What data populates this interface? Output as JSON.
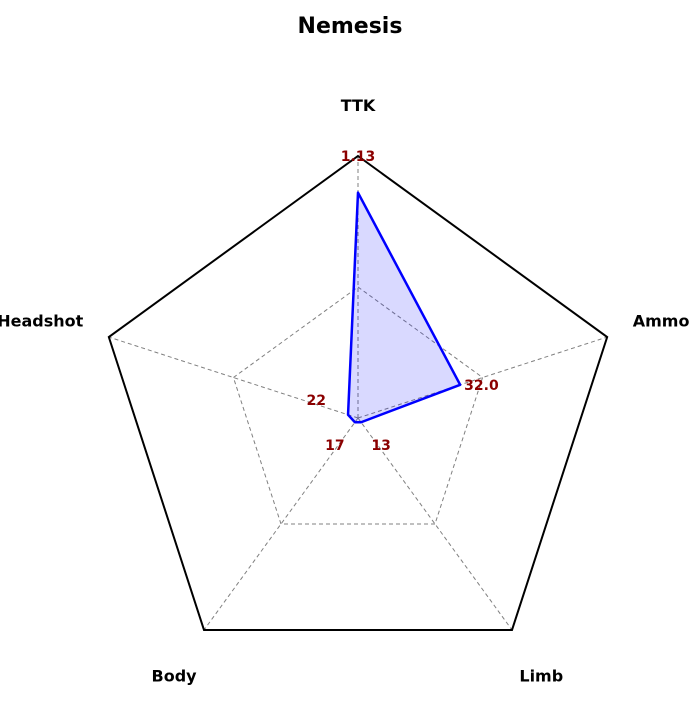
{
  "chart_data": {
    "type": "radar",
    "title": "Nemesis",
    "axes": [
      "TTK",
      "Ammo",
      "Limb",
      "Body",
      "Headshot"
    ],
    "value_labels": [
      "1.13",
      "32.0",
      "13",
      "17",
      "22"
    ],
    "values_normalized": [
      0.86,
      0.41,
      0.02,
      0.02,
      0.04
    ],
    "grid": true,
    "grid_levels": [
      0.5,
      1.0
    ],
    "colors": {
      "series_line": "#0000ff",
      "series_fill": "#0000ff",
      "value_label": "#8b0000",
      "outer_frame": "#000000",
      "grid": "#808080"
    }
  }
}
